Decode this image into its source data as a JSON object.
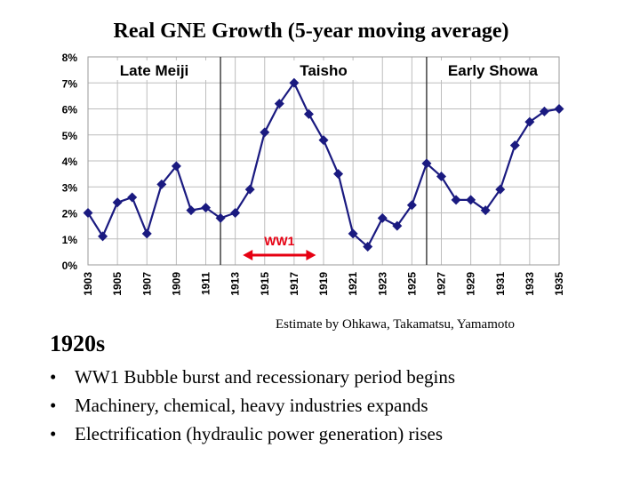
{
  "page": {
    "title": "Real GNE Growth (5-year moving average)",
    "source": "Estimate by Ohkawa, Takamatsu, Yamamoto",
    "section_heading": "1920s",
    "bullets": [
      "WW1 Bubble burst and recessionary period begins",
      "Machinery, chemical, heavy industries expands",
      "Electrification (hydraulic power generation) rises"
    ]
  },
  "chart_data": {
    "type": "line",
    "title": "Real GNE Growth (5-year moving average)",
    "xlabel": "",
    "ylabel": "",
    "x": [
      1903,
      1904,
      1905,
      1906,
      1907,
      1908,
      1909,
      1910,
      1911,
      1912,
      1913,
      1914,
      1915,
      1916,
      1917,
      1918,
      1919,
      1920,
      1921,
      1922,
      1923,
      1924,
      1925,
      1926,
      1927,
      1928,
      1929,
      1930,
      1931,
      1932,
      1933,
      1934,
      1935
    ],
    "values": [
      2.0,
      1.1,
      2.4,
      2.6,
      1.2,
      3.1,
      3.8,
      2.1,
      2.2,
      1.8,
      2.0,
      2.9,
      5.1,
      6.2,
      7.0,
      5.8,
      4.8,
      3.5,
      1.2,
      0.7,
      1.8,
      1.5,
      2.3,
      3.9,
      3.4,
      2.5,
      2.5,
      2.1,
      2.9,
      4.6,
      5.5,
      5.9,
      6.0
    ],
    "x_tick_labels": [
      "1903",
      "1905",
      "1907",
      "1909",
      "1911",
      "1913",
      "1915",
      "1917",
      "1919",
      "1921",
      "1923",
      "1925",
      "1927",
      "1929",
      "1931",
      "1933",
      "1935"
    ],
    "y_tick_labels": [
      "0%",
      "1%",
      "2%",
      "3%",
      "4%",
      "5%",
      "6%",
      "7%",
      "8%"
    ],
    "ylim": [
      0,
      8
    ],
    "xlim": [
      1903,
      1935
    ],
    "grid": true,
    "eras": [
      {
        "label": "Late Meiji",
        "start": 1903,
        "end": 1912
      },
      {
        "label": "Taisho",
        "start": 1912,
        "end": 1926
      },
      {
        "label": "Early Showa",
        "start": 1926,
        "end": 1935
      }
    ],
    "era_boundaries": [
      1912,
      1926
    ],
    "annotation": {
      "label": "WW1",
      "start": 1914,
      "end": 1918
    },
    "colors": {
      "line": "#1a1a80",
      "marker": "#1a1a80",
      "grid": "#bdbdbd",
      "annotation": "#e60012",
      "axis_text": "#000000"
    }
  }
}
